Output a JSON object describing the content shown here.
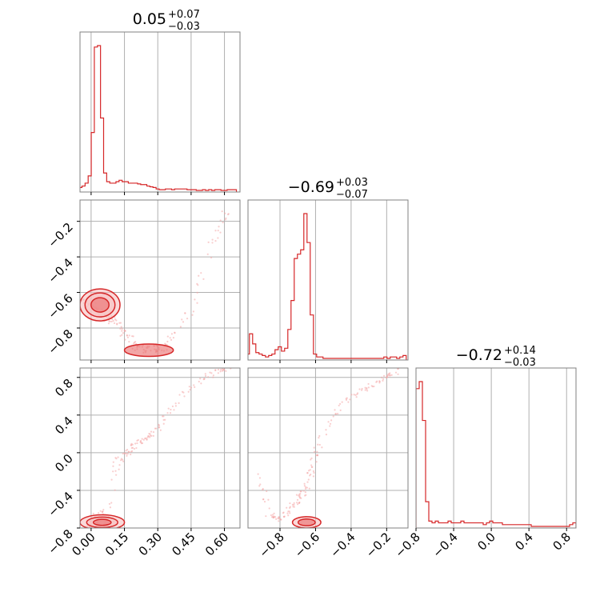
{
  "chart_data": {
    "type": "corner",
    "colors": {
      "main": "#d62728",
      "fill": "#f4a6a6",
      "axis": "#808080",
      "grid": "#b0b0b0"
    },
    "params": [
      {
        "range": [
          -0.05,
          0.67
        ],
        "ticks": [
          0.0,
          0.15,
          0.3,
          0.45,
          0.6
        ],
        "tick_labels": [
          "0.00",
          "0.15",
          "0.30",
          "0.45",
          "0.60"
        ]
      },
      {
        "range": [
          -0.98,
          -0.08
        ],
        "ticks": [
          -0.2,
          -0.4,
          -0.6,
          -0.8
        ],
        "tick_labels": [
          "−0.2",
          "−0.4",
          "−0.6",
          "−0.8"
        ]
      },
      {
        "range": [
          -0.8,
          0.9
        ],
        "ticks": [
          -0.8,
          -0.4,
          0.0,
          0.4,
          0.8
        ],
        "tick_labels": [
          "−0.8",
          "−0.4",
          "0.0",
          "0.4",
          "0.8"
        ]
      }
    ],
    "titles": [
      {
        "value": "0.05",
        "plus": "+0.07",
        "minus": "−0.03"
      },
      {
        "value": "−0.69",
        "plus": "+0.03",
        "minus": "−0.07"
      },
      {
        "value": "−0.72",
        "plus": "+0.14",
        "minus": "−0.03"
      }
    ],
    "histograms": [
      {
        "start": -0.055,
        "width": 0.0139,
        "counts": [
          0.02,
          0.03,
          0.05,
          0.1,
          0.4,
          0.99,
          1.0,
          0.5,
          0.12,
          0.06,
          0.05,
          0.05,
          0.06,
          0.07,
          0.06,
          0.06,
          0.05,
          0.05,
          0.05,
          0.045,
          0.04,
          0.04,
          0.03,
          0.025,
          0.02,
          0.01,
          0.005,
          0.005,
          0.01,
          0.01,
          0.005,
          0.01,
          0.01,
          0.01,
          0.01,
          0.005,
          0.005,
          0.005,
          0.0,
          0.0,
          0.005,
          0.0,
          0.005,
          0.0,
          0.005,
          0.005,
          0.0,
          0.0,
          0.005,
          0.005,
          0.005
        ]
      },
      {
        "start": -0.99,
        "width": 0.018,
        "counts": [
          0.03,
          0.17,
          0.1,
          0.04,
          0.03,
          0.02,
          0.01,
          0.02,
          0.03,
          0.06,
          0.08,
          0.05,
          0.07,
          0.2,
          0.4,
          0.69,
          0.72,
          0.75,
          1.0,
          0.8,
          0.3,
          0.03,
          0.01,
          0.01,
          0.0,
          0.0,
          0.0,
          0.0,
          0.0,
          0.0,
          0.0,
          0.0,
          0.0,
          0.0,
          0.0,
          0.0,
          0.0,
          0.0,
          0.0,
          0.0,
          0.0,
          0.0,
          0.0,
          0.01,
          0.0,
          0.01,
          0.01,
          0.0,
          0.01,
          0.02
        ]
      },
      {
        "start": -0.8,
        "width": 0.034,
        "counts": [
          0.78,
          0.82,
          0.6,
          0.14,
          0.03,
          0.02,
          0.03,
          0.02,
          0.02,
          0.02,
          0.03,
          0.02,
          0.02,
          0.02,
          0.03,
          0.02,
          0.02,
          0.02,
          0.02,
          0.02,
          0.02,
          0.01,
          0.02,
          0.03,
          0.02,
          0.02,
          0.02,
          0.01,
          0.01,
          0.01,
          0.01,
          0.01,
          0.01,
          0.01,
          0.01,
          0.01,
          0.0,
          0.0,
          0.0,
          0.0,
          0.0,
          0.0,
          0.0,
          0.0,
          0.0,
          0.0,
          0.0,
          0.0,
          0.01,
          0.02
        ]
      }
    ],
    "scatter_paths": [
      {
        "x": [
          -0.04,
          0.0,
          0.04,
          0.08,
          0.12,
          0.16,
          0.2,
          0.25,
          0.3,
          0.35,
          0.45,
          0.55,
          0.62
        ],
        "y1": [
          -0.66,
          -0.66,
          -0.7,
          -0.74,
          -0.78,
          -0.84,
          -0.9,
          -0.92,
          -0.92,
          -0.88,
          -0.7,
          -0.3,
          -0.12
        ],
        "y2": [
          -0.8,
          -0.8,
          -0.62,
          -0.8,
          -0.1,
          0.0,
          0.1,
          0.15,
          0.25,
          0.45,
          0.7,
          0.85,
          0.9
        ]
      },
      {
        "y1": [
          -0.12,
          -0.2,
          -0.3,
          -0.4,
          -0.5,
          -0.6,
          -0.62,
          -0.66,
          -0.7,
          -0.75,
          -0.8,
          -0.86,
          -0.92
        ],
        "y2": [
          0.88,
          0.82,
          0.7,
          0.6,
          0.4,
          0.0,
          -0.2,
          -0.4,
          -0.5,
          -0.6,
          -0.72,
          -0.66,
          -0.2
        ]
      }
    ],
    "contours": [
      {
        "panel": "1-0",
        "center": [
          0.04,
          -0.67
        ],
        "radii": [
          0.09,
          0.09
        ],
        "levels": [
          1.0,
          0.75,
          0.45
        ]
      },
      {
        "panel": "1-0",
        "center": [
          0.26,
          -0.925
        ],
        "radii": [
          0.11,
          0.035
        ],
        "levels": [
          1.0
        ]
      },
      {
        "panel": "2-0",
        "center": [
          0.05,
          -0.74
        ],
        "radii": [
          0.1,
          0.08
        ],
        "levels": [
          1.0,
          0.7,
          0.4
        ]
      },
      {
        "panel": "2-1",
        "center": [
          -0.65,
          -0.74
        ],
        "radii": [
          0.08,
          0.06
        ],
        "levels": [
          1.0,
          0.6
        ]
      }
    ]
  }
}
